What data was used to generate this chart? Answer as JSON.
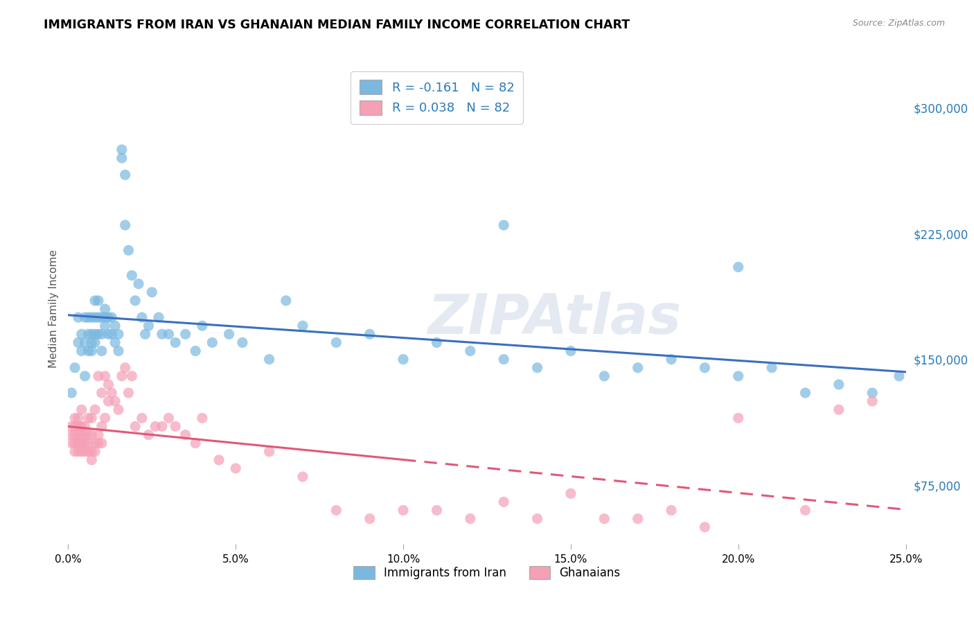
{
  "title": "IMMIGRANTS FROM IRAN VS GHANAIAN MEDIAN FAMILY INCOME CORRELATION CHART",
  "source": "Source: ZipAtlas.com",
  "ylabel": "Median Family Income",
  "legend_label1": "Immigrants from Iran",
  "legend_label2": "Ghanaians",
  "legend_r1": "R = -0.161",
  "legend_n1": "N = 82",
  "legend_r2": "R = 0.038",
  "legend_n2": "N = 82",
  "watermark": "ZIPAtlas",
  "ytick_labels": [
    "$75,000",
    "$150,000",
    "$225,000",
    "$300,000"
  ],
  "ytick_values": [
    75000,
    150000,
    225000,
    300000
  ],
  "xlim": [
    0.0,
    0.25
  ],
  "ylim": [
    40000,
    320000
  ],
  "color_iran": "#7ab8e0",
  "color_ghana": "#f5a0b5",
  "line_iran": "#3a6fbf",
  "line_ghana": "#e05878",
  "iran_scatter_x": [
    0.001,
    0.002,
    0.003,
    0.003,
    0.004,
    0.004,
    0.005,
    0.005,
    0.005,
    0.006,
    0.006,
    0.006,
    0.007,
    0.007,
    0.007,
    0.007,
    0.008,
    0.008,
    0.008,
    0.008,
    0.009,
    0.009,
    0.009,
    0.01,
    0.01,
    0.01,
    0.011,
    0.011,
    0.011,
    0.012,
    0.012,
    0.013,
    0.013,
    0.014,
    0.014,
    0.015,
    0.015,
    0.016,
    0.016,
    0.017,
    0.017,
    0.018,
    0.019,
    0.02,
    0.021,
    0.022,
    0.023,
    0.024,
    0.025,
    0.027,
    0.028,
    0.03,
    0.032,
    0.035,
    0.038,
    0.04,
    0.043,
    0.048,
    0.052,
    0.06,
    0.065,
    0.07,
    0.08,
    0.09,
    0.1,
    0.11,
    0.12,
    0.13,
    0.14,
    0.15,
    0.16,
    0.17,
    0.18,
    0.19,
    0.2,
    0.21,
    0.22,
    0.23,
    0.24,
    0.248,
    0.13,
    0.2
  ],
  "iran_scatter_y": [
    130000,
    145000,
    160000,
    175000,
    155000,
    165000,
    140000,
    160000,
    175000,
    155000,
    165000,
    175000,
    155000,
    160000,
    165000,
    175000,
    160000,
    165000,
    175000,
    185000,
    165000,
    175000,
    185000,
    155000,
    165000,
    175000,
    170000,
    175000,
    180000,
    165000,
    175000,
    165000,
    175000,
    160000,
    170000,
    155000,
    165000,
    270000,
    275000,
    260000,
    230000,
    215000,
    200000,
    185000,
    195000,
    175000,
    165000,
    170000,
    190000,
    175000,
    165000,
    165000,
    160000,
    165000,
    155000,
    170000,
    160000,
    165000,
    160000,
    150000,
    185000,
    170000,
    160000,
    165000,
    150000,
    160000,
    155000,
    150000,
    145000,
    155000,
    140000,
    145000,
    150000,
    145000,
    140000,
    145000,
    130000,
    135000,
    130000,
    140000,
    230000,
    205000
  ],
  "ghana_scatter_x": [
    0.001,
    0.001,
    0.001,
    0.002,
    0.002,
    0.002,
    0.002,
    0.002,
    0.003,
    0.003,
    0.003,
    0.003,
    0.003,
    0.003,
    0.003,
    0.004,
    0.004,
    0.004,
    0.004,
    0.004,
    0.005,
    0.005,
    0.005,
    0.005,
    0.006,
    0.006,
    0.006,
    0.006,
    0.007,
    0.007,
    0.007,
    0.007,
    0.008,
    0.008,
    0.008,
    0.009,
    0.009,
    0.009,
    0.01,
    0.01,
    0.01,
    0.011,
    0.011,
    0.012,
    0.012,
    0.013,
    0.014,
    0.015,
    0.016,
    0.017,
    0.018,
    0.019,
    0.02,
    0.022,
    0.024,
    0.026,
    0.028,
    0.03,
    0.032,
    0.035,
    0.038,
    0.04,
    0.045,
    0.05,
    0.06,
    0.07,
    0.08,
    0.09,
    0.1,
    0.11,
    0.12,
    0.13,
    0.14,
    0.15,
    0.16,
    0.17,
    0.18,
    0.19,
    0.2,
    0.22,
    0.23,
    0.24
  ],
  "ghana_scatter_y": [
    100000,
    105000,
    110000,
    95000,
    100000,
    105000,
    110000,
    115000,
    95000,
    100000,
    100000,
    105000,
    110000,
    110000,
    115000,
    95000,
    100000,
    105000,
    110000,
    120000,
    95000,
    100000,
    105000,
    110000,
    95000,
    100000,
    105000,
    115000,
    90000,
    95000,
    105000,
    115000,
    95000,
    100000,
    120000,
    100000,
    105000,
    140000,
    100000,
    110000,
    130000,
    115000,
    140000,
    125000,
    135000,
    130000,
    125000,
    120000,
    140000,
    145000,
    130000,
    140000,
    110000,
    115000,
    105000,
    110000,
    110000,
    115000,
    110000,
    105000,
    100000,
    115000,
    90000,
    85000,
    95000,
    80000,
    60000,
    55000,
    60000,
    60000,
    55000,
    65000,
    55000,
    70000,
    55000,
    55000,
    60000,
    50000,
    115000,
    60000,
    120000,
    125000
  ]
}
